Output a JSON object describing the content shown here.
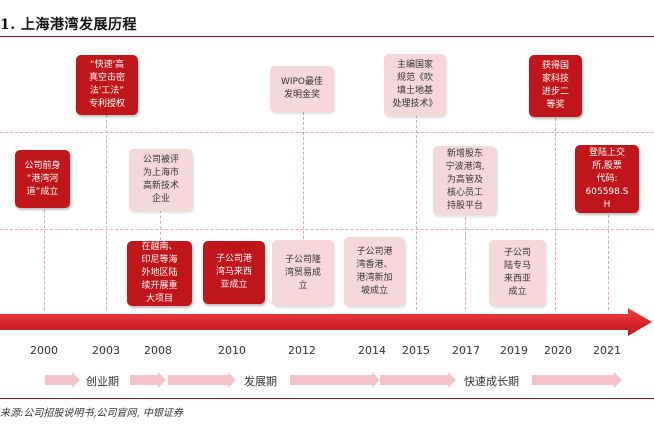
{
  "title": "1. 上海港湾发展历程",
  "timeline": {
    "years": [
      "2000",
      "2003",
      "2008",
      "2010",
      "2012",
      "2014",
      "2015",
      "2017",
      "2019",
      "2020",
      "2021"
    ]
  },
  "events": [
    {
      "id": "e2000",
      "year": "2000",
      "text": "公司前身\n“港湾河\n道”成立",
      "style": "red"
    },
    {
      "id": "e2003",
      "year": "2003",
      "text": "“快速'高\n真空击密\n法'工法”\n专利授权",
      "style": "red"
    },
    {
      "id": "e2008a",
      "year": "2008",
      "text": "公司被评\n为上海市\n高新技术\n企业",
      "style": "pink"
    },
    {
      "id": "e2008b",
      "year": "2008",
      "text": "在越南、\n印尼等海\n外地区陆\n续开展重\n大项目",
      "style": "red"
    },
    {
      "id": "e2010",
      "year": "2010",
      "text": "子公司港\n湾马来西\n亚成立",
      "style": "red"
    },
    {
      "id": "e2012a",
      "year": "2012",
      "text": "WIPO最佳\n发明金奖",
      "style": "pink"
    },
    {
      "id": "e2012b",
      "year": "2012",
      "text": "子公司隆\n湾贸易成\n立",
      "style": "pink"
    },
    {
      "id": "e2014",
      "year": "2014",
      "text": "子公司港\n湾香港、\n港湾新加\n坡成立",
      "style": "pink"
    },
    {
      "id": "e2015",
      "year": "2015",
      "text": "主编国家\n规范《吹\n填土地基\n处理技术》",
      "style": "pink"
    },
    {
      "id": "e2017",
      "year": "2017",
      "text": "新增股东\n宁波港湾,\n为高管及\n核心员工\n持股平台",
      "style": "pink"
    },
    {
      "id": "e2019",
      "year": "2019",
      "text": "子公司\n陆专马\n来西亚\n成立",
      "style": "pink"
    },
    {
      "id": "e2020",
      "year": "2020",
      "text": "获得国\n家科技\n进步二\n等奖",
      "style": "red"
    },
    {
      "id": "e2021",
      "year": "2021",
      "text": "登陆上交\n所,股票\n代码:\n605598.S\nH",
      "style": "red"
    }
  ],
  "phases": [
    "创业期",
    "发展期",
    "快速成长期"
  ],
  "source": "来源:公司招股说明书,公司官网, 中银证券",
  "colors": {
    "accent_red": "#c0161b",
    "arrow_red": "#d9262b",
    "pink": "#f6d7da",
    "phase_arrow": "#f2c4c8"
  }
}
